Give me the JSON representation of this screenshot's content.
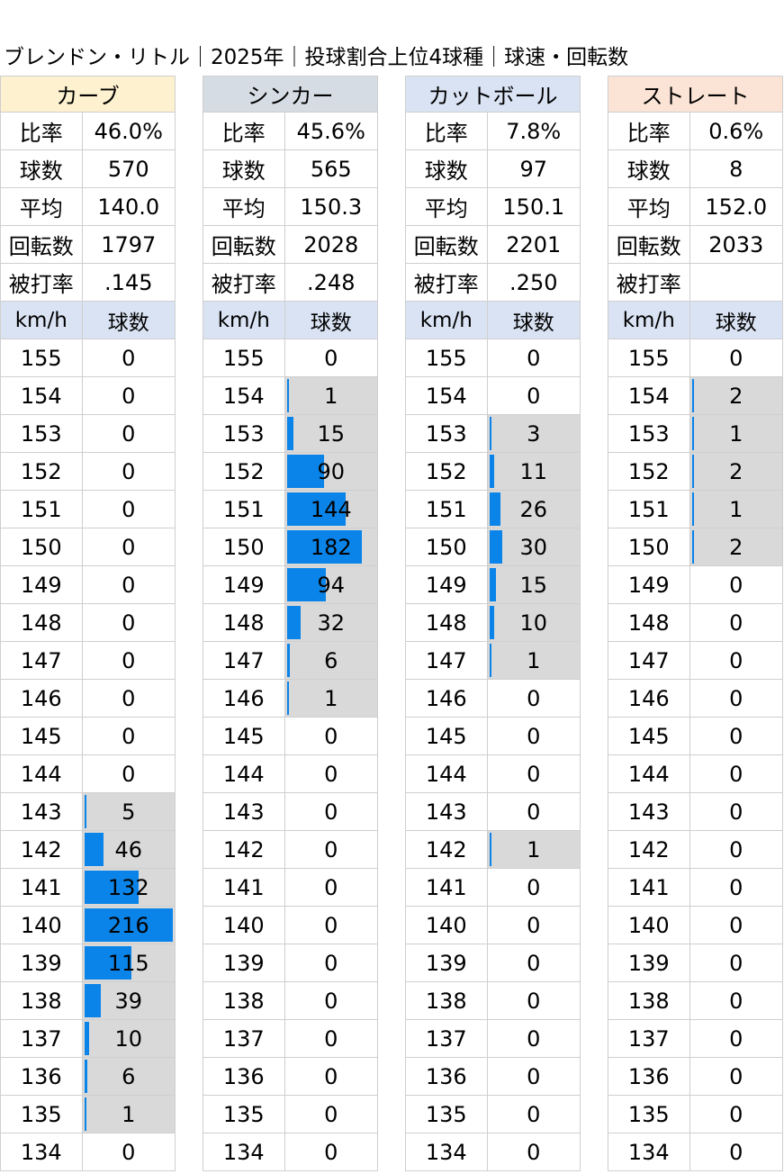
{
  "title": "ブレンドン・リトル｜2025年｜投球割合上位4球種｜球速・回転数",
  "labels": {
    "ratio": "比率",
    "count": "球数",
    "avg": "平均",
    "spin": "回転数",
    "ba": "被打率",
    "kmh": "km/h",
    "pitches": "球数"
  },
  "colors": {
    "bar": "#0a84e8",
    "bar_background": "#d9d9d9",
    "subheader": "#dae3f3"
  },
  "chart_data": {
    "type": "table",
    "speeds": [
      155,
      154,
      153,
      152,
      151,
      150,
      149,
      148,
      147,
      146,
      145,
      144,
      143,
      142,
      141,
      140,
      139,
      138,
      137,
      136,
      135,
      134
    ],
    "max_count": 216,
    "pitches": [
      {
        "name": "カーブ",
        "header_color": "#fdf1cf",
        "ratio": "46.0%",
        "count": "570",
        "avg": "140.0",
        "spin": "1797",
        "ba": ".145",
        "counts": [
          0,
          0,
          0,
          0,
          0,
          0,
          0,
          0,
          0,
          0,
          0,
          0,
          5,
          46,
          132,
          216,
          115,
          39,
          10,
          6,
          1,
          0
        ]
      },
      {
        "name": "シンカー",
        "header_color": "#d6dce4",
        "ratio": "45.6%",
        "count": "565",
        "avg": "150.3",
        "spin": "2028",
        "ba": ".248",
        "counts": [
          0,
          1,
          15,
          90,
          144,
          182,
          94,
          32,
          6,
          1,
          0,
          0,
          0,
          0,
          0,
          0,
          0,
          0,
          0,
          0,
          0,
          0
        ]
      },
      {
        "name": "カットボール",
        "header_color": "#dae3f3",
        "ratio": "7.8%",
        "count": "97",
        "avg": "150.1",
        "spin": "2201",
        "ba": ".250",
        "counts": [
          0,
          0,
          3,
          11,
          26,
          30,
          15,
          10,
          1,
          0,
          0,
          0,
          0,
          1,
          0,
          0,
          0,
          0,
          0,
          0,
          0,
          0
        ]
      },
      {
        "name": "ストレート",
        "header_color": "#fbe4d5",
        "ratio": "0.6%",
        "count": "8",
        "avg": "152.0",
        "spin": "2033",
        "ba": "",
        "counts": [
          0,
          2,
          1,
          2,
          1,
          2,
          0,
          0,
          0,
          0,
          0,
          0,
          0,
          0,
          0,
          0,
          0,
          0,
          0,
          0,
          0,
          0
        ]
      }
    ]
  }
}
